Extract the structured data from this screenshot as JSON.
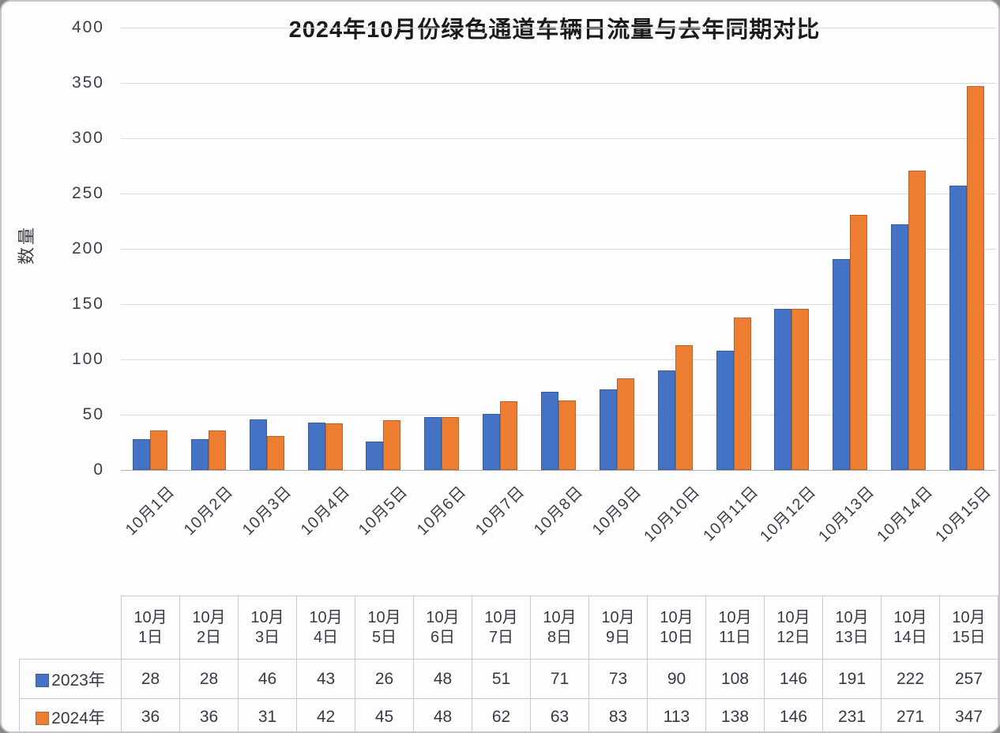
{
  "chart_data": {
    "type": "bar",
    "title": "2024年10月份绿色通道车辆日流量与去年同期对比",
    "ylabel": "数量",
    "xlabel": "",
    "ylim": [
      0,
      400
    ],
    "ytick_step": 50,
    "grid": true,
    "legend_position": "data-table-left",
    "categories": [
      "10月1日",
      "10月2日",
      "10月3日",
      "10月4日",
      "10月5日",
      "10月6日",
      "10月7日",
      "10月8日",
      "10月9日",
      "10月10日",
      "10月11日",
      "10月12日",
      "10月13日",
      "10月14日",
      "10月15日"
    ],
    "table_header_lines": [
      [
        "10月",
        "1日"
      ],
      [
        "10月",
        "2日"
      ],
      [
        "10月",
        "3日"
      ],
      [
        "10月",
        "4日"
      ],
      [
        "10月",
        "5日"
      ],
      [
        "10月",
        "6日"
      ],
      [
        "10月",
        "7日"
      ],
      [
        "10月",
        "8日"
      ],
      [
        "10月",
        "9日"
      ],
      [
        "10月",
        "10日"
      ],
      [
        "10月",
        "11日"
      ],
      [
        "10月",
        "12日"
      ],
      [
        "10月",
        "13日"
      ],
      [
        "10月",
        "14日"
      ],
      [
        "10月",
        "15日"
      ]
    ],
    "series": [
      {
        "name": "2023年",
        "color": "#4472C4",
        "values": [
          28,
          28,
          46,
          43,
          26,
          48,
          51,
          71,
          73,
          90,
          108,
          146,
          191,
          222,
          257
        ]
      },
      {
        "name": "2024年",
        "color": "#ED7D31",
        "values": [
          36,
          36,
          31,
          42,
          45,
          48,
          62,
          63,
          83,
          113,
          138,
          146,
          231,
          271,
          347
        ]
      }
    ]
  },
  "colors": {
    "series_2023": "#4472C4",
    "series_2024": "#ED7D31",
    "gridline": "#DCDCE0",
    "axis_line": "#B0B0B2",
    "tick_text": "#403C48",
    "title_text": "#1B1B1B",
    "table_border": "#C3CBDB"
  }
}
